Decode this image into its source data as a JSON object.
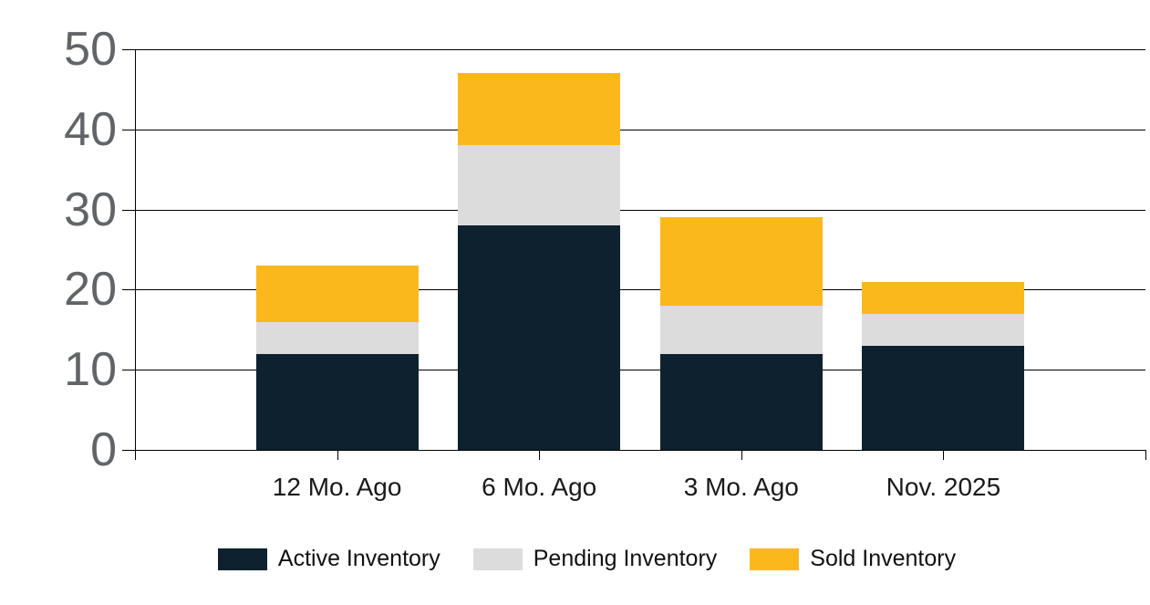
{
  "chart_data": {
    "type": "bar",
    "stacked": true,
    "title": "",
    "categories": [
      "12 Mo. Ago",
      "6 Mo. Ago",
      "3 Mo. Ago",
      "Nov. 2025"
    ],
    "series": [
      {
        "name": "Active Inventory",
        "color": "#0d212e",
        "values": [
          12,
          28,
          12,
          13
        ]
      },
      {
        "name": "Pending Inventory",
        "color": "#dcdcdc",
        "values": [
          4,
          10,
          6,
          4
        ]
      },
      {
        "name": "Sold Inventory",
        "color": "#fbb81c",
        "values": [
          7,
          9,
          11,
          4
        ]
      }
    ],
    "stack_totals": [
      23,
      47,
      29,
      21
    ],
    "y_ticks": [
      0,
      10,
      20,
      30,
      40,
      50
    ],
    "ylim": [
      0,
      50
    ],
    "grid": true,
    "legend_position": "bottom",
    "colors": {
      "background": "#ffffff",
      "gridline": "#000000",
      "y_label_text": "#626468",
      "x_label_text": "#1a1a1a",
      "legend_text": "#111111"
    }
  }
}
